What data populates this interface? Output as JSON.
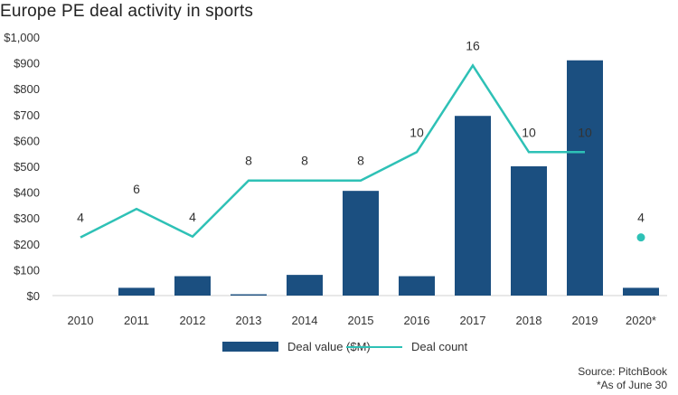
{
  "colors": {
    "bar": "#1b4f80",
    "line": "#2ec1b6",
    "text": "#333333",
    "axis": "#444444"
  },
  "chart_data": {
    "title": "Europe PE deal activity in sports",
    "type": "bar+line",
    "categories": [
      "2010",
      "2011",
      "2012",
      "2013",
      "2014",
      "2015",
      "2016",
      "2017",
      "2018",
      "2019",
      "2020*"
    ],
    "ylim": [
      0,
      1000
    ],
    "yticks": [
      "$0",
      "$100",
      "$200",
      "$300",
      "$400",
      "$500",
      "$600",
      "$700",
      "$800",
      "$900",
      "$1,000"
    ],
    "ytick_values": [
      0,
      100,
      200,
      300,
      400,
      500,
      600,
      700,
      800,
      900,
      1000
    ],
    "series": [
      {
        "name": "Deal value ($M)",
        "type": "bar",
        "values": [
          0,
          30,
          75,
          5,
          80,
          405,
          75,
          695,
          500,
          910,
          30
        ]
      },
      {
        "name": "Deal count",
        "type": "line",
        "values": [
          4,
          6,
          4,
          8,
          8,
          8,
          10,
          16,
          10,
          10,
          4
        ],
        "labels": [
          "4",
          "6",
          "4",
          "8",
          "8",
          "8",
          "10",
          "16",
          "10",
          "10",
          "4"
        ],
        "y_position": [
          225,
          335,
          228,
          445,
          445,
          445,
          555,
          890,
          555,
          555,
          225
        ],
        "connected_through": "2019",
        "standalone_marker": "2020*"
      }
    ],
    "legend": [
      "Deal value ($M)",
      "Deal count"
    ],
    "legend_position": "bottom-center"
  },
  "source": {
    "line1": "Source: PitchBook",
    "line2": "*As of June 30"
  }
}
